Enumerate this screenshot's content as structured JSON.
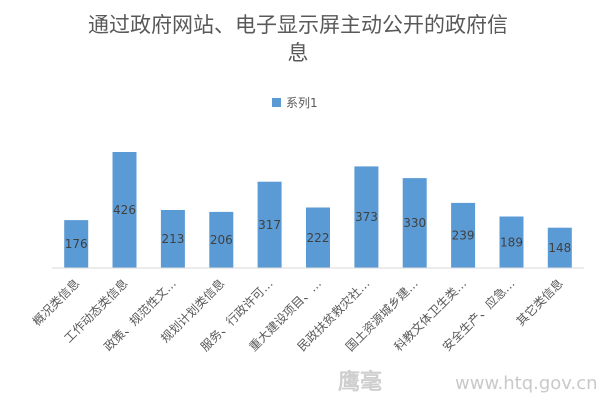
{
  "chart_data": {
    "type": "bar",
    "title_lines": [
      "通过政府网站、电子显示屏主动公开的政府信",
      "息"
    ],
    "legend": [
      "系列1"
    ],
    "categories": [
      "概况类信息",
      "工作动态类信息",
      "政策、规范性文…",
      "规划计划类信息",
      "服务、行政许可…",
      "重大建设项目、…",
      "民政扶贫救灾社…",
      "国土资源城乡建…",
      "科教文体卫生类…",
      "安全生产、应急…",
      "其它类信息"
    ],
    "series": [
      {
        "name": "系列1",
        "values": [
          176,
          426,
          213,
          206,
          317,
          222,
          373,
          330,
          239,
          189,
          148
        ]
      }
    ],
    "ylim": [
      0,
      426
    ],
    "grid": false,
    "legend_position": "top",
    "bar_color": "#5b9bd5"
  },
  "watermark": {
    "logo": "鹰毫",
    "url": "www.htq.gov.cn"
  }
}
